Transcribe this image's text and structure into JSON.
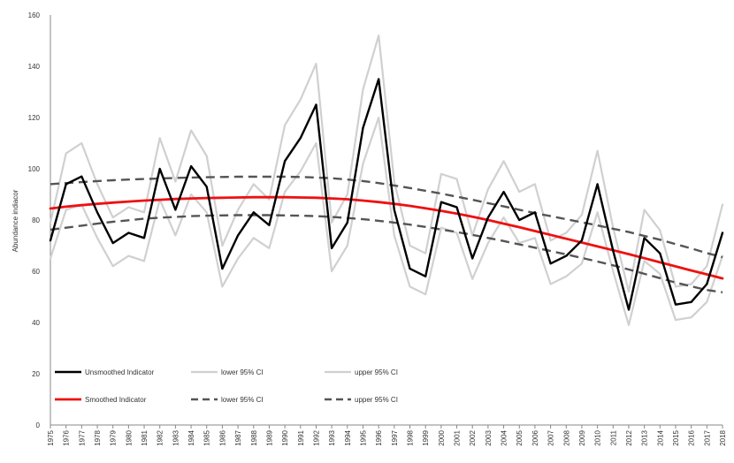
{
  "chart_data": {
    "type": "line",
    "title": "",
    "xlabel": "",
    "ylabel": "Abundance indiacor",
    "ylim": [
      0,
      160
    ],
    "yticks": [
      0,
      20,
      40,
      60,
      80,
      100,
      120,
      140,
      160
    ],
    "grid": false,
    "legend_position": "bottom-left",
    "x": [
      "1975",
      "1976",
      "1977",
      "1978",
      "1979",
      "1980",
      "1981",
      "1982",
      "1983",
      "1984",
      "1985",
      "1986",
      "1987",
      "1988",
      "1989",
      "1990",
      "1991",
      "1992",
      "1993",
      "1994",
      "1995",
      "1996",
      "1997",
      "1998",
      "1999",
      "2000",
      "2001",
      "2002",
      "2003",
      "2004",
      "2005",
      "2006",
      "2007",
      "2008",
      "2009",
      "2010",
      "2011",
      "2012",
      "2013",
      "2014",
      "2015",
      "2016",
      "2017",
      "2018"
    ],
    "series": [
      {
        "name": "Unsmoothed Indicator",
        "color": "#000000",
        "style": "solid",
        "values": [
          72,
          94,
          97,
          83,
          71,
          75,
          73,
          100,
          84,
          101,
          93,
          61,
          74,
          83,
          78,
          103,
          112,
          125,
          69,
          79,
          116,
          135,
          84,
          61,
          58,
          87,
          85,
          65,
          81,
          91,
          80,
          83,
          63,
          66,
          72,
          94,
          68,
          45,
          73,
          67,
          47,
          48,
          55,
          75
        ]
      },
      {
        "name": "lower 95% CI",
        "color": "#d0d0d0",
        "style": "solid",
        "values": [
          65,
          84,
          86,
          73,
          62,
          66,
          64,
          88,
          74,
          90,
          83,
          54,
          65,
          73,
          69,
          91,
          99,
          110,
          60,
          70,
          102,
          120,
          74,
          54,
          51,
          77,
          75,
          57,
          71,
          81,
          71,
          73,
          55,
          58,
          63,
          83,
          60,
          39,
          64,
          59,
          41,
          42,
          48,
          66
        ]
      },
      {
        "name": "upper 95% CI",
        "color": "#d0d0d0",
        "style": "solid",
        "values": [
          79,
          106,
          110,
          94,
          81,
          85,
          83,
          112,
          95,
          115,
          105,
          70,
          84,
          94,
          88,
          117,
          127,
          141,
          79,
          90,
          131,
          152,
          95,
          70,
          67,
          98,
          96,
          74,
          92,
          103,
          91,
          94,
          72,
          75,
          82,
          107,
          77,
          52,
          84,
          76,
          54,
          55,
          62,
          86
        ]
      },
      {
        "name": "Smoothed Indicator",
        "color": "#ee1111",
        "style": "solid",
        "values": [
          84.5,
          85.2,
          85.8,
          86.3,
          86.8,
          87.2,
          87.6,
          87.9,
          88.2,
          88.4,
          88.6,
          88.7,
          88.8,
          88.9,
          88.9,
          88.9,
          88.8,
          88.7,
          88.4,
          88.1,
          87.6,
          87.0,
          86.3,
          85.5,
          84.6,
          83.6,
          82.5,
          81.3,
          80.0,
          78.6,
          77.2,
          75.7,
          74.2,
          72.7,
          71.2,
          69.7,
          68.2,
          66.7,
          65.1,
          63.5,
          61.9,
          60.3,
          58.8,
          57.2
        ]
      },
      {
        "name": "lower 95% CI",
        "color": "#555555",
        "style": "dashed",
        "values": [
          76.2,
          77.0,
          77.8,
          78.6,
          79.3,
          79.9,
          80.5,
          80.9,
          81.2,
          81.5,
          81.7,
          81.8,
          81.9,
          81.9,
          81.9,
          81.8,
          81.7,
          81.5,
          81.2,
          80.8,
          80.3,
          79.7,
          79.0,
          78.2,
          77.3,
          76.3,
          75.3,
          74.2,
          73.0,
          71.8,
          70.5,
          69.2,
          67.9,
          66.6,
          65.2,
          63.8,
          62.3,
          60.7,
          59.0,
          57.3,
          55.6,
          54.1,
          52.7,
          51.8
        ]
      },
      {
        "name": "upper 95% CI",
        "color": "#555555",
        "style": "dashed",
        "values": [
          94.0,
          94.4,
          94.8,
          95.2,
          95.5,
          95.8,
          96.0,
          96.2,
          96.4,
          96.6,
          96.7,
          96.8,
          96.9,
          96.9,
          96.9,
          96.9,
          96.8,
          96.6,
          96.3,
          95.8,
          95.2,
          94.4,
          93.5,
          92.5,
          91.4,
          90.3,
          89.1,
          87.9,
          86.6,
          85.3,
          84.0,
          82.7,
          81.5,
          80.3,
          79.1,
          77.9,
          76.6,
          75.3,
          73.8,
          72.3,
          70.6,
          68.9,
          67.1,
          65.5
        ]
      }
    ]
  }
}
